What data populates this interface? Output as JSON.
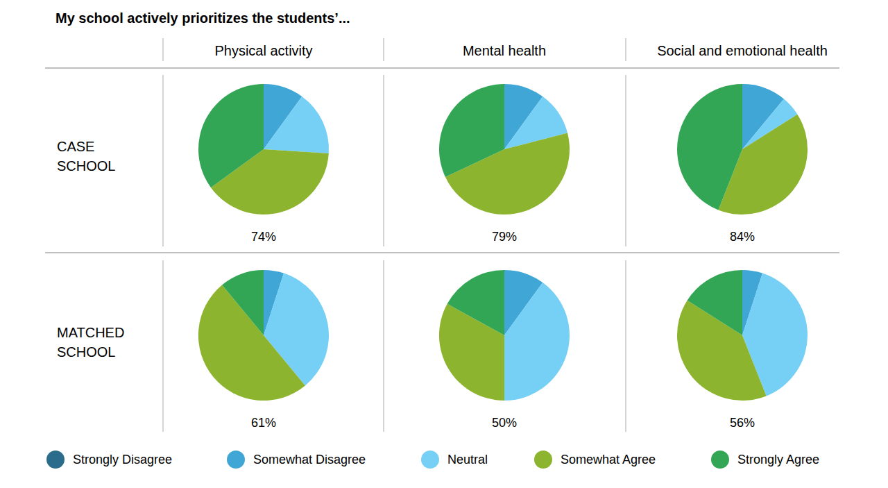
{
  "chart_data": {
    "type": "pie",
    "title": "My school actively prioritizes the students’...",
    "rows": [
      "CASE SCHOOL",
      "MATCHED SCHOOL"
    ],
    "columns": [
      "Physical activity",
      "Mental health",
      "Social and emotional health"
    ],
    "categories": [
      "Strongly Disagree",
      "Somewhat Disagree",
      "Neutral",
      "Somewhat Agree",
      "Strongly Agree"
    ],
    "colors": [
      "#2b6b8c",
      "#3fa6d5",
      "#76cff4",
      "#8db42e",
      "#33a655"
    ],
    "legend": "bottom",
    "pies": [
      {
        "values": [
          0,
          10,
          16,
          39,
          35
        ],
        "agree_total": 74,
        "agree_total_label": "74%"
      },
      {
        "values": [
          0,
          10,
          11,
          47,
          32
        ],
        "agree_total": 79,
        "agree_total_label": "79%"
      },
      {
        "values": [
          0,
          11,
          5,
          40,
          44
        ],
        "agree_total": 84,
        "agree_total_label": "84%"
      },
      {
        "values": [
          0,
          5,
          34,
          50,
          11
        ],
        "agree_total": 61,
        "agree_total_label": "61%"
      },
      {
        "values": [
          0,
          10,
          40,
          33,
          17
        ],
        "agree_total": 50,
        "agree_total_label": "50%"
      },
      {
        "values": [
          0,
          5,
          39,
          40,
          16
        ],
        "agree_total": 56,
        "agree_total_label": "56%"
      }
    ]
  }
}
